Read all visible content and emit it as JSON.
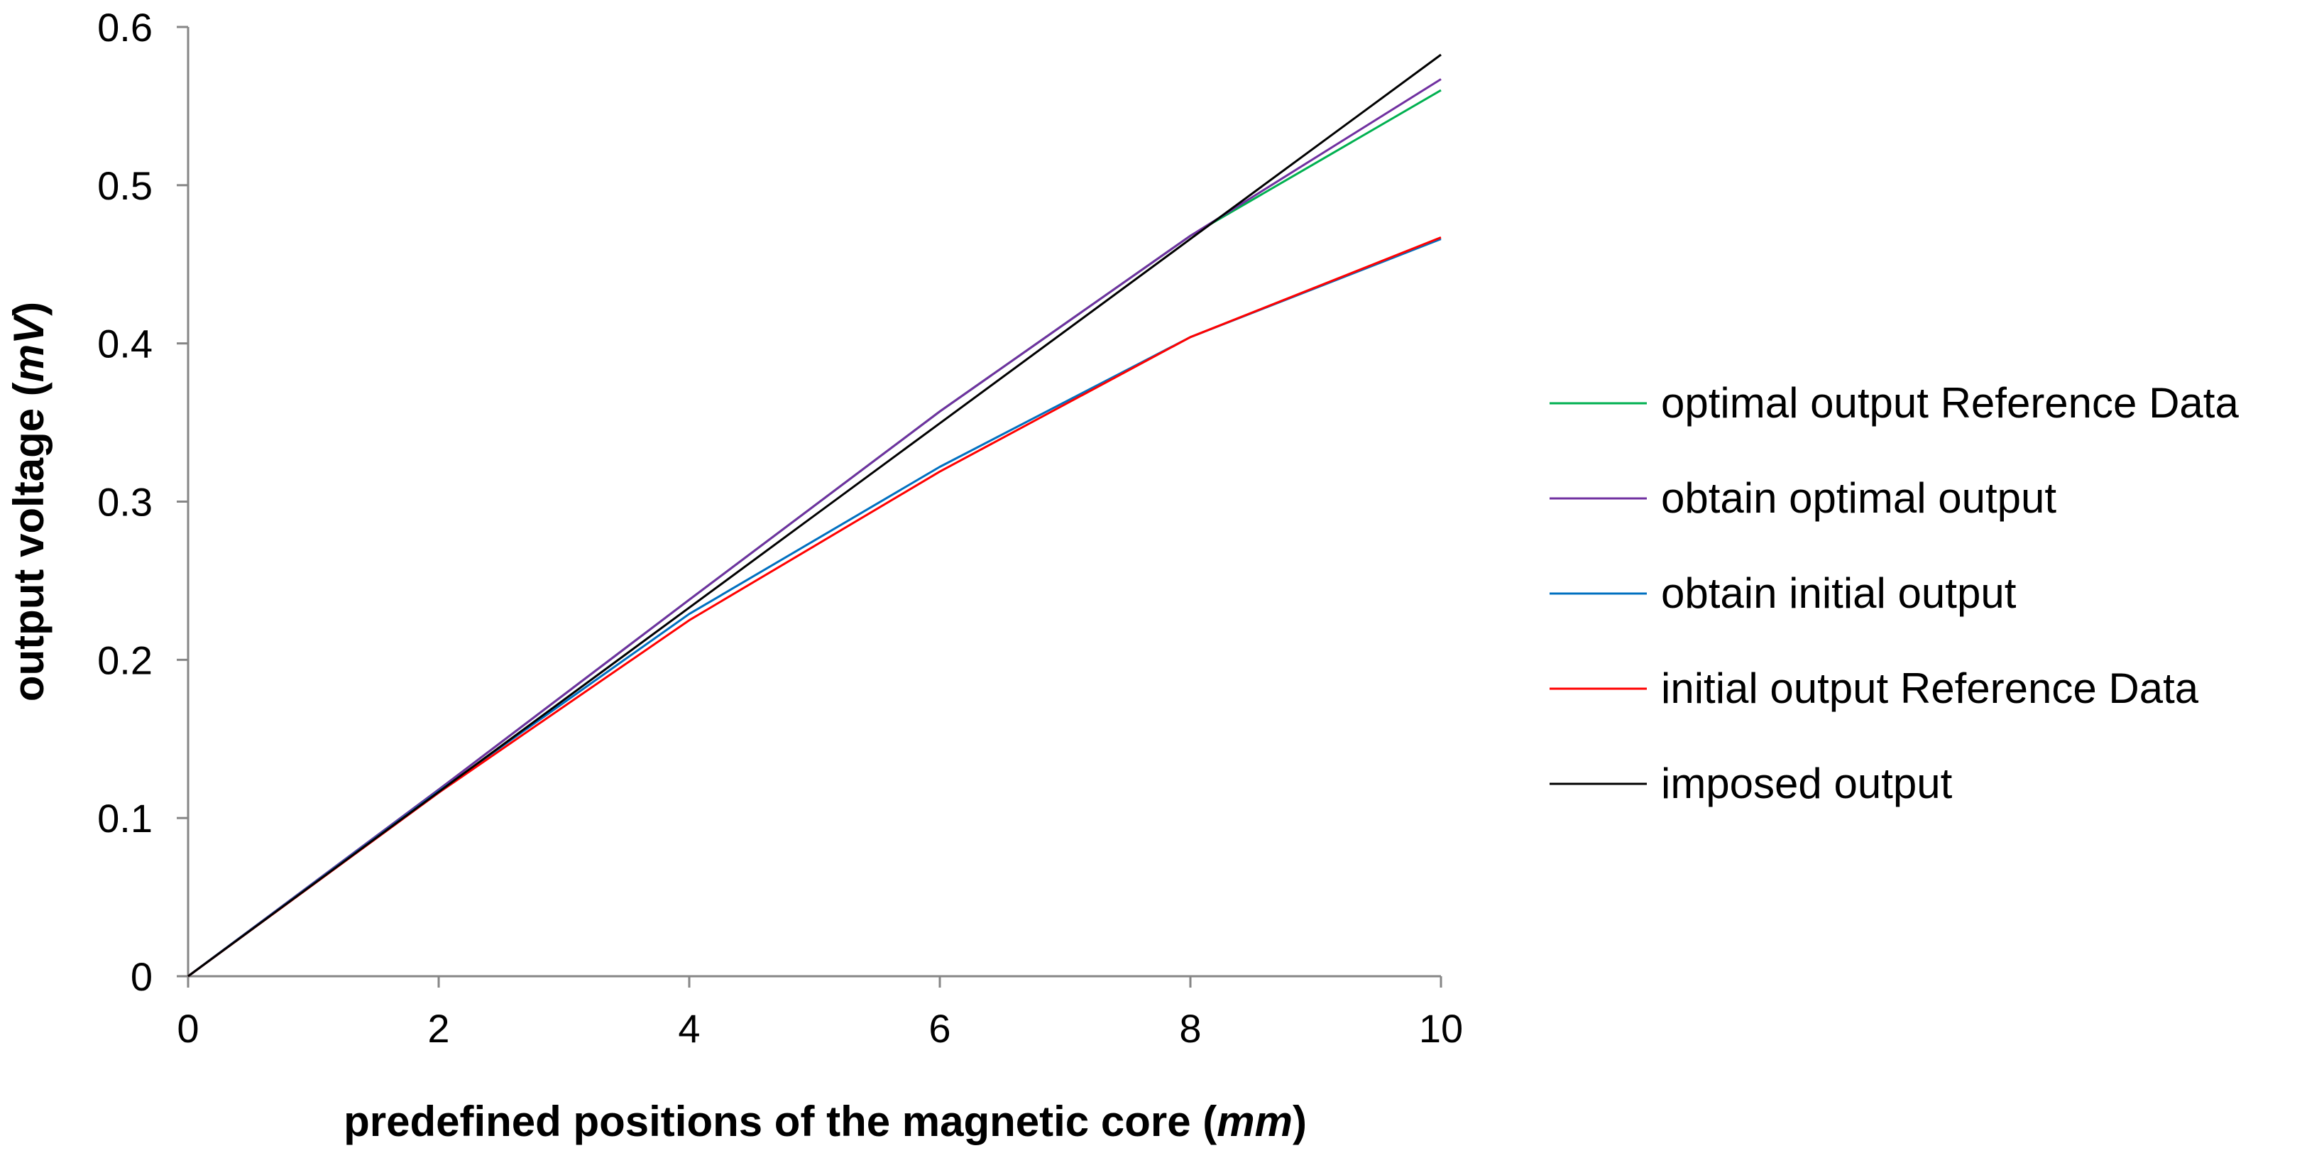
{
  "chart_data": {
    "type": "line",
    "title": "",
    "xlabel": "predefined positions of the magnetic core (mm)",
    "xlabel_parts": {
      "prefix": "predefined positions of the magnetic core (",
      "unit": "mm",
      "suffix": ")"
    },
    "ylabel": "output voltage (mV)",
    "ylabel_parts": {
      "prefix": "output voltage (",
      "unit": "mV",
      "suffix": ")"
    },
    "x": [
      0,
      2,
      4,
      6,
      8,
      10
    ],
    "xlim": [
      0,
      10
    ],
    "ylim": [
      0,
      0.6
    ],
    "xticks": [
      0,
      2,
      4,
      6,
      8,
      10
    ],
    "yticks": [
      0,
      0.1,
      0.2,
      0.3,
      0.4,
      0.5,
      0.6
    ],
    "xtick_labels": [
      "0",
      "2",
      "4",
      "6",
      "8",
      "10"
    ],
    "ytick_labels": [
      "0",
      "0.1",
      "0.2",
      "0.3",
      "0.4",
      "0.5",
      "0.6"
    ],
    "grid": false,
    "legend_position": "right",
    "series": [
      {
        "name": "optimal output Reference Data",
        "color": "#00b050",
        "values": [
          0,
          0.118,
          0.238,
          0.357,
          0.468,
          0.56
        ]
      },
      {
        "name": "obtain optimal output",
        "color": "#7030a0",
        "values": [
          0,
          0.118,
          0.238,
          0.357,
          0.468,
          0.567
        ]
      },
      {
        "name": "obtain initial output",
        "color": "#0070c0",
        "values": [
          0,
          0.117,
          0.229,
          0.322,
          0.404,
          0.466
        ]
      },
      {
        "name": "initial output Reference Data",
        "color": "#ff0000",
        "values": [
          0,
          0.116,
          0.225,
          0.319,
          0.404,
          0.467
        ]
      },
      {
        "name": "imposed output",
        "color": "#000000",
        "values": [
          0,
          0.1165,
          0.233,
          0.3495,
          0.466,
          0.5825
        ]
      }
    ]
  }
}
